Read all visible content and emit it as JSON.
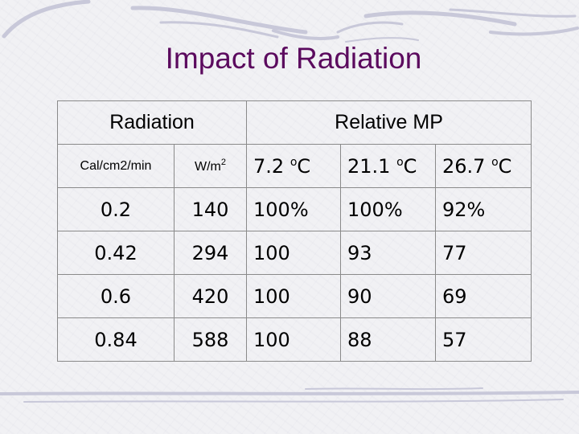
{
  "slide": {
    "title": "Impact of Radiation"
  },
  "table": {
    "group_headers": {
      "radiation": "Radiation",
      "relative_mp": "Relative MP"
    },
    "sub_headers": {
      "unit1": "Cal/cm2/min",
      "unit2_base": "W/m",
      "unit2_exp": "2",
      "deg": "o",
      "temps": [
        "7.2 ",
        "21.1 ",
        "26.7 "
      ],
      "temp_unit": "C"
    },
    "rows": [
      [
        "0.2",
        "140",
        "100%",
        "100%",
        "92%"
      ],
      [
        "0.42",
        "294",
        "100",
        "93",
        "77"
      ],
      [
        "0.6",
        "420",
        "100",
        "90",
        "69"
      ],
      [
        "0.84",
        "588",
        "100",
        "88",
        "57"
      ]
    ]
  },
  "colors": {
    "title": "#5b0a5e",
    "deco_stroke": "#c4c4d6",
    "border": "#8a8a8a"
  }
}
